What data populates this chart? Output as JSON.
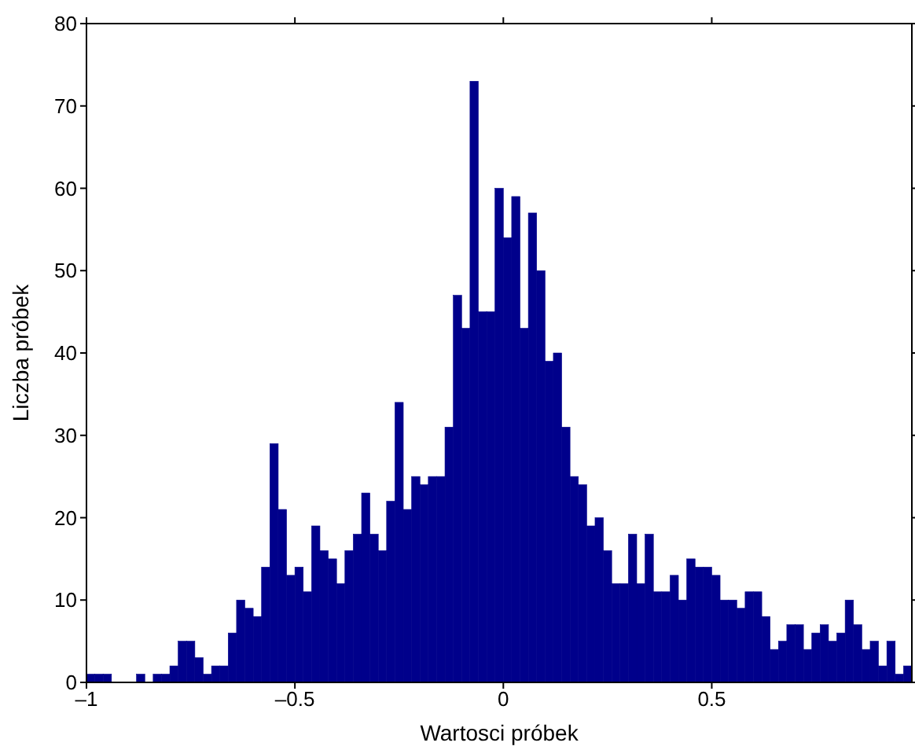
{
  "chart_data": {
    "type": "histogram",
    "xlabel": "Wartosci próbek",
    "ylabel": "Liczba próbek",
    "color": "#00008b",
    "bins": [
      -1,
      -0.98,
      -0.96,
      -0.94,
      -0.92,
      -0.9,
      -0.88,
      -0.86,
      -0.84,
      -0.82,
      -0.8,
      -0.78,
      -0.76,
      -0.74,
      -0.72,
      -0.7,
      -0.68,
      -0.66,
      -0.64,
      -0.62,
      -0.6,
      -0.58,
      -0.56,
      -0.54,
      -0.52,
      -0.5,
      -0.48,
      -0.46,
      -0.44,
      -0.42,
      -0.4,
      -0.38,
      -0.36,
      -0.34,
      -0.32,
      -0.3,
      -0.28,
      -0.26,
      -0.24,
      -0.22,
      -0.2,
      -0.18,
      -0.16,
      -0.14,
      -0.12,
      -0.1,
      -0.08,
      -0.06,
      -0.04,
      -0.02,
      0,
      0.02,
      0.04,
      0.06,
      0.08,
      0.1,
      0.12,
      0.14,
      0.16,
      0.18,
      0.2,
      0.22,
      0.24,
      0.26,
      0.28,
      0.3,
      0.32,
      0.34,
      0.36,
      0.38,
      0.4,
      0.42,
      0.44,
      0.46,
      0.48,
      0.5,
      0.52,
      0.54,
      0.56,
      0.58,
      0.6,
      0.62,
      0.64,
      0.66,
      0.68,
      0.7,
      0.72,
      0.74,
      0.76,
      0.78,
      0.8,
      0.82,
      0.84,
      0.86,
      0.88,
      0.9,
      0.92,
      0.94,
      0.96,
      0.98
    ],
    "values": [
      1,
      1,
      1,
      0,
      0,
      0,
      1,
      0,
      1,
      1,
      2,
      5,
      5,
      3,
      1,
      2,
      2,
      6,
      10,
      9,
      8,
      14,
      29,
      21,
      13,
      14,
      11,
      19,
      16,
      15,
      12,
      16,
      18,
      23,
      18,
      16,
      22,
      34,
      21,
      25,
      24,
      25,
      25,
      31,
      47,
      43,
      73,
      45,
      45,
      60,
      54,
      59,
      43,
      57,
      50,
      39,
      40,
      31,
      25,
      24,
      19,
      20,
      16,
      12,
      12,
      18,
      12,
      18,
      11,
      11,
      13,
      10,
      15,
      14,
      14,
      13,
      10,
      10,
      9,
      11,
      11,
      8,
      4,
      5,
      7,
      7,
      4,
      6,
      7,
      5,
      6,
      10,
      7,
      4,
      5,
      2,
      5,
      1,
      2
    ],
    "xlim": [
      -1,
      0.98
    ],
    "xticks": [
      {
        "value": -1,
        "label": "–1"
      },
      {
        "value": -0.5,
        "label": "–0.5"
      },
      0,
      0.5
    ],
    "ylim": [
      0,
      80
    ],
    "yticks": [
      0,
      10,
      20,
      30,
      40,
      50,
      60,
      70,
      80
    ]
  }
}
